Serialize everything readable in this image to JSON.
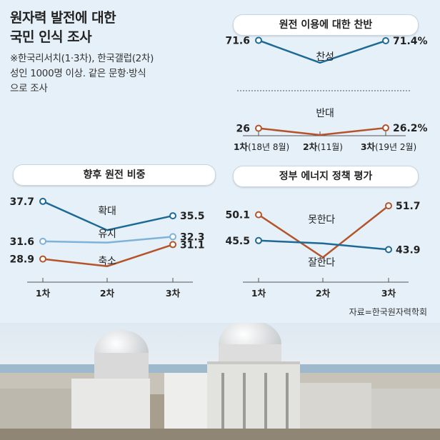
{
  "header": {
    "title_line1": "원자력 발전에 대한",
    "title_line2": "국민 인식 조사",
    "note_line1": "※한국리서치(1·3차), 한국갤럽(2차)",
    "note_line2": "성인 1000명 이상. 같은 문항·방식",
    "note_line3": "으로 조사"
  },
  "source": "자료=한국원자력학회",
  "colors": {
    "blue": "#1d6a96",
    "orange": "#b4542a",
    "lightblue": "#7fb2d8"
  },
  "chart_data": [
    {
      "type": "line",
      "title": "원전 이용에 대한 찬반",
      "categories": [
        "1차",
        "2차",
        "3차"
      ],
      "category_sub": [
        "(18년 8월)",
        "(11월)",
        "(19년 2월)"
      ],
      "series": [
        {
          "name": "찬성",
          "values": [
            71.6,
            null,
            71.4
          ],
          "labels": [
            "71.6",
            "",
            "71.4%"
          ],
          "color": "blue"
        },
        {
          "name": "반대",
          "values": [
            26,
            null,
            26.2
          ],
          "labels": [
            "26",
            "",
            "26.2%"
          ],
          "color": "orange"
        }
      ]
    },
    {
      "type": "line",
      "title": "향후 원전 비중",
      "categories": [
        "1차",
        "2차",
        "3차"
      ],
      "series": [
        {
          "name": "확대",
          "values": [
            37.7,
            null,
            35.5
          ],
          "labels": [
            "37.7",
            "",
            "35.5"
          ],
          "color": "blue"
        },
        {
          "name": "유지",
          "values": [
            31.6,
            null,
            32.3
          ],
          "labels": [
            "31.6",
            "",
            "32.3"
          ],
          "color": "lightblue"
        },
        {
          "name": "축소",
          "values": [
            28.9,
            null,
            31.1
          ],
          "labels": [
            "28.9",
            "",
            "31.1"
          ],
          "color": "orange"
        }
      ]
    },
    {
      "type": "line",
      "title": "정부 에너지 정책 평가",
      "categories": [
        "1차",
        "2차",
        "3차"
      ],
      "series": [
        {
          "name": "못한다",
          "values": [
            50.1,
            null,
            51.7
          ],
          "labels": [
            "50.1",
            "",
            "51.7"
          ],
          "color": "orange"
        },
        {
          "name": "잘한다",
          "values": [
            45.5,
            null,
            43.9
          ],
          "labels": [
            "45.5",
            "",
            "43.9"
          ],
          "color": "blue"
        }
      ]
    }
  ]
}
